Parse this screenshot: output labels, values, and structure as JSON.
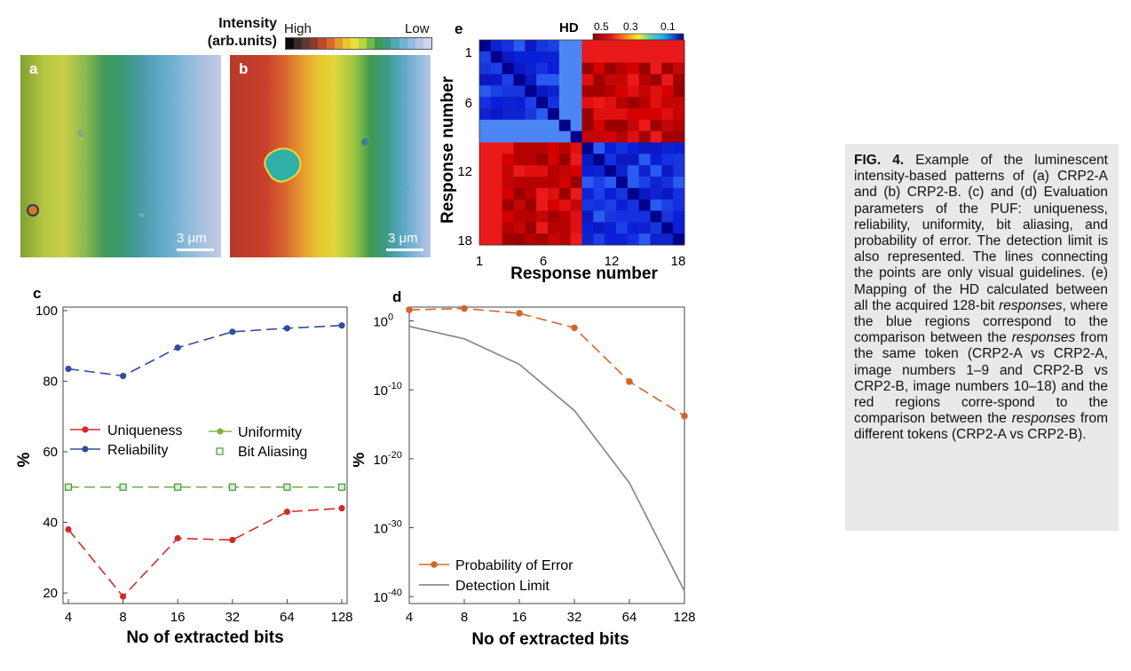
{
  "colorbar_intensity": {
    "title_line1": "Intensity",
    "title_line2": "(arb.units)",
    "high_label": "High",
    "low_label": "Low",
    "colors": [
      "#0b0b0b",
      "#3a2a26",
      "#5a3a32",
      "#8a3a2e",
      "#b84a2a",
      "#d6682a",
      "#e49a2c",
      "#e8c52e",
      "#e6e23a",
      "#b9d63e",
      "#6fbb4a",
      "#3a9c52",
      "#3f9a7e",
      "#4fa9b2",
      "#6fb3d6",
      "#95b9e0",
      "#b9c6e6",
      "#cfd5ee"
    ]
  },
  "panel_a": {
    "letter": "a",
    "scalebar": "3 μm"
  },
  "panel_b": {
    "letter": "b",
    "scalebar": "3 μm"
  },
  "panel_c": {
    "letter": "c",
    "ylabel": "%",
    "xlabel": "No of extracted bits",
    "xticks": [
      "4",
      "8",
      "16",
      "32",
      "64",
      "128"
    ],
    "yticks": [
      "20",
      "40",
      "60",
      "80",
      "100"
    ],
    "legend": [
      {
        "name": "Uniqueness",
        "color": "#d32a2a"
      },
      {
        "name": "Uniformity",
        "color": "#7ab648"
      },
      {
        "name": "Reliability",
        "color": "#2f4e9e"
      },
      {
        "name": "Bit Aliasing",
        "color": "#3d9b3d"
      }
    ]
  },
  "panel_d": {
    "letter": "d",
    "ylabel": "%",
    "xlabel": "No of extracted bits",
    "xticks": [
      "4",
      "8",
      "16",
      "32",
      "64",
      "128"
    ],
    "yticks": [
      "10",
      "10",
      "10",
      "10",
      "10"
    ],
    "ytick_exponents": [
      "0",
      "-10",
      "-20",
      "-30",
      "-40"
    ],
    "legend": [
      {
        "name": "Probability of Error",
        "color": "#d2662a"
      },
      {
        "name": "Detection Limit",
        "color": "#8c8c8c"
      }
    ]
  },
  "panel_e": {
    "letter": "e",
    "colorbar_title": "HD",
    "colorbar_ticks": [
      "0.5",
      "0.3",
      "0.1"
    ],
    "xlabel": "Response number",
    "ylabel": "Response number",
    "xticks": [
      "1",
      "6",
      "12",
      "18"
    ],
    "yticks": [
      "1",
      "6",
      "12",
      "18"
    ]
  },
  "chart_data": [
    {
      "type": "line",
      "panel": "c",
      "x": [
        4,
        8,
        16,
        32,
        64,
        128
      ],
      "xscale": "log2",
      "ylim": [
        17,
        101
      ],
      "xlabel": "No of extracted bits",
      "ylabel": "%",
      "series": [
        {
          "name": "Uniqueness",
          "values": [
            38,
            19,
            35.5,
            35,
            43,
            44
          ],
          "color": "#d32a2a"
        },
        {
          "name": "Reliability",
          "values": [
            83.5,
            81.5,
            89.5,
            94,
            95,
            95.8
          ],
          "color": "#2f4e9e"
        },
        {
          "name": "Uniformity",
          "values": [
            50,
            50,
            50,
            50,
            50,
            50
          ],
          "color": "#7ab648"
        },
        {
          "name": "Bit Aliasing",
          "values": [
            50,
            50,
            50,
            50,
            50,
            50
          ],
          "color": "#3d9b3d"
        }
      ],
      "grid": false,
      "legend_position": "middle"
    },
    {
      "type": "line",
      "panel": "d",
      "x": [
        4,
        8,
        16,
        32,
        64,
        128
      ],
      "xscale": "log2",
      "yscale": "log",
      "ylim_exponent": [
        -41,
        2
      ],
      "xlabel": "No of extracted bits",
      "ylabel": "%",
      "series": [
        {
          "name": "Probability of Error",
          "log10_values": [
            1.6,
            1.8,
            1.1,
            -1,
            -8.8,
            -13.8
          ],
          "color": "#d2662a"
        },
        {
          "name": "Detection Limit",
          "log10_values": [
            -0.8,
            -2.6,
            -6.3,
            -13,
            -23.5,
            -39.2
          ],
          "color": "#8c8c8c"
        }
      ],
      "grid": false,
      "legend_position": "bottom-left"
    },
    {
      "type": "heatmap",
      "panel": "e",
      "rows": 18,
      "cols": 18,
      "xlabel": "Response number",
      "ylabel": "Response number",
      "color_scale": "HD (0.5 red – 0.3 yellow – 0.1 blue)",
      "blocks": [
        {
          "rows": "1-9",
          "cols": "1-9",
          "value": 0.1
        },
        {
          "rows": "10-18",
          "cols": "10-18",
          "value": 0.1
        },
        {
          "rows": "1-9",
          "cols": "10-18",
          "value": 0.5
        },
        {
          "rows": "10-18",
          "cols": "1-9",
          "value": 0.5
        }
      ]
    }
  ],
  "caption": {
    "label": "FIG. 4.",
    "segments": [
      {
        "t": " Example of the luminescent intensity-based patterns of (a) CRP2-A and (b) CRP2-B. (c) and (d) Evaluation parameters of the PUF: uniqueness, reliability, uniformity, bit aliasing, and probability of error. The detection limit is also represented. The lines connecting the points are only visual guidelines. (e) Mapping of the HD calculated between all the acquired 128-bit "
      },
      {
        "t": "responses",
        "i": true
      },
      {
        "t": ", where the blue regions correspond to the comparison between the "
      },
      {
        "t": "responses",
        "i": true
      },
      {
        "t": " from the same token (CRP2-A vs CRP2-A, image numbers 1–9 and CRP2-B vs CRP2-B, image numbers 10–18) and the red regions corre-spond to the comparison between the "
      },
      {
        "t": "responses",
        "i": true
      },
      {
        "t": " from different tokens (CRP2-A vs CRP2-B)."
      }
    ]
  }
}
